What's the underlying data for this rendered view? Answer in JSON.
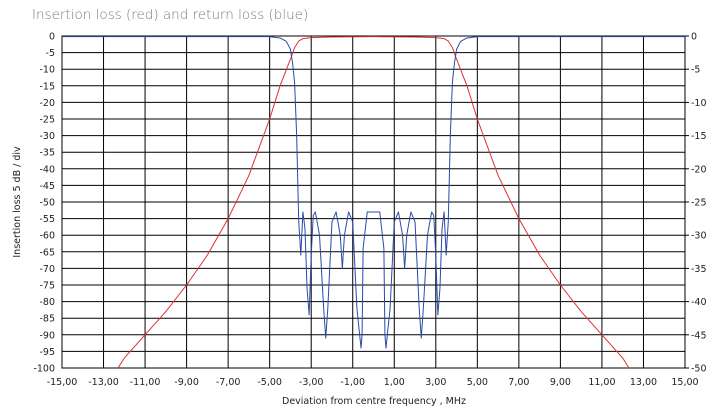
{
  "chart_data": {
    "type": "line",
    "title": "Insertion loss (red) and return loss (blue)",
    "xlabel": "Deviation from centre frequency ,  MHz",
    "ylabel": "Insertion loss  5 dB / div",
    "xlim": [
      -15,
      15
    ],
    "ylim_left": [
      -100,
      0
    ],
    "ylim_right": [
      -50,
      0
    ],
    "x_ticks": [
      "-15,00",
      "-13,00",
      "-11,00",
      "-9,00",
      "-7,00",
      "-5,00",
      "-3,00",
      "-1,00",
      "1,00",
      "3,00",
      "5,00",
      "7,00",
      "9,00",
      "11,00",
      "13,00",
      "15,00"
    ],
    "y_left_ticks": [
      "0",
      "-5",
      "-10",
      "-15",
      "-20",
      "-25",
      "-30",
      "-35",
      "-40",
      "-45",
      "-50",
      "-55",
      "-60",
      "-65",
      "-70",
      "-75",
      "-80",
      "-85",
      "-90",
      "-95",
      "-100"
    ],
    "y_right_ticks": [
      "0",
      "-5",
      "-10",
      "-15",
      "-20",
      "-25",
      "-30",
      "-35",
      "-40",
      "-45",
      "-50"
    ],
    "grid": true,
    "colors": {
      "insertion": "#e03030",
      "return": "#2a4aa8",
      "grid": "#000000"
    },
    "series": [
      {
        "name": "Insertion loss",
        "axis": "left",
        "x": [
          -12.3,
          -12.0,
          -11.0,
          -10.0,
          -9.0,
          -8.0,
          -7.0,
          -6.0,
          -5.0,
          -4.5,
          -4.0,
          -3.8,
          -3.6,
          -3.4,
          -3.0,
          -2.0,
          0.0,
          2.0,
          3.0,
          3.4,
          3.6,
          3.8,
          4.0,
          4.5,
          5.0,
          6.0,
          7.0,
          8.0,
          9.0,
          10.0,
          11.0,
          12.0,
          12.3
        ],
        "values": [
          -100,
          -97,
          -90,
          -83,
          -75,
          -66,
          -55,
          -42,
          -25,
          -15,
          -7,
          -3.5,
          -1.5,
          -0.8,
          -0.5,
          -0.3,
          -0.2,
          -0.3,
          -0.5,
          -0.8,
          -1.5,
          -3.5,
          -7,
          -15,
          -25,
          -42,
          -55,
          -66,
          -75,
          -83,
          -90,
          -97,
          -100
        ]
      },
      {
        "name": "Return loss",
        "axis": "right",
        "x": [
          -15.0,
          -5.0,
          -4.5,
          -4.2,
          -4.0,
          -3.9,
          -3.8,
          -3.7,
          -3.6,
          -3.5,
          -3.4,
          -3.3,
          -3.2,
          -3.1,
          -3.0,
          -2.9,
          -2.8,
          -2.6,
          -2.4,
          -2.3,
          -2.2,
          -2.0,
          -1.8,
          -1.6,
          -1.5,
          -1.4,
          -1.2,
          -1.0,
          -0.8,
          -0.6,
          -0.55,
          -0.5,
          -0.3,
          0.0,
          0.3,
          0.5,
          0.55,
          0.6,
          0.8,
          1.0,
          1.2,
          1.4,
          1.5,
          1.6,
          1.8,
          2.0,
          2.2,
          2.3,
          2.4,
          2.6,
          2.8,
          2.9,
          3.0,
          3.1,
          3.2,
          3.3,
          3.4,
          3.5,
          3.6,
          3.7,
          3.8,
          3.9,
          4.0,
          4.2,
          4.5,
          5.0,
          15.0
        ],
        "values": [
          -0.1,
          -0.1,
          -0.3,
          -0.8,
          -2,
          -4,
          -7,
          -15,
          -28,
          -33,
          -26.5,
          -29,
          -38,
          -42,
          -33,
          -27,
          -26.5,
          -30,
          -41,
          -45.5,
          -41,
          -28,
          -26.5,
          -30,
          -35,
          -30,
          -26.5,
          -28,
          -41,
          -47,
          -45,
          -32,
          -26.5,
          -26.5,
          -26.5,
          -32,
          -45,
          -47,
          -41,
          -28,
          -26.5,
          -30,
          -35,
          -30,
          -26.5,
          -28,
          -41,
          -45.5,
          -41,
          -30,
          -26.5,
          -27,
          -33,
          -42,
          -38,
          -29,
          -26.5,
          -33,
          -28,
          -15,
          -7,
          -4,
          -2,
          -0.8,
          -0.3,
          -0.1,
          -0.1
        ]
      }
    ]
  }
}
